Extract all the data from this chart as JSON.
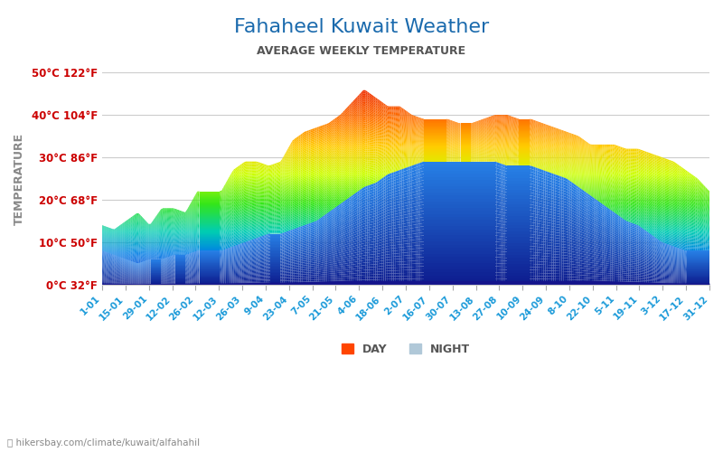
{
  "title": "Fahaheel Kuwait Weather",
  "subtitle": "AVERAGE WEEKLY TEMPERATURE",
  "ylabel": "TEMPERATURE",
  "xlabel_labels": [
    "1-01",
    "15-01",
    "29-01",
    "12-02",
    "26-02",
    "12-03",
    "26-03",
    "9-04",
    "23-04",
    "7-05",
    "21-05",
    "4-06",
    "18-06",
    "2-07",
    "16-07",
    "30-07",
    "13-08",
    "27-08",
    "10-09",
    "24-09",
    "8-10",
    "22-10",
    "5-11",
    "19-11",
    "3-12",
    "17-12",
    "31-12"
  ],
  "yticks": [
    0,
    10,
    20,
    30,
    40,
    50
  ],
  "ytick_labels": [
    "0°C 32°F",
    "10°C 50°F",
    "20°C 68°F",
    "30°C 86°F",
    "40°C 104°F",
    "50°C 122°F"
  ],
  "ymin": 0,
  "ymax": 50,
  "title_color": "#1a6aad",
  "subtitle_color": "#555555",
  "ytick_color": "#cc0000",
  "xtick_color": "#1a9ad9",
  "ylabel_color": "#888888",
  "footer_text": "hikersbay.com/climate/kuwait/alfahahil",
  "legend_day_color": "#ff4500",
  "legend_night_color": "#b0c8d8",
  "day_temps": [
    14,
    13,
    15,
    17,
    14,
    18,
    18,
    17,
    22,
    22,
    22,
    27,
    29,
    29,
    28,
    29,
    34,
    36,
    37,
    38,
    40,
    43,
    46,
    44,
    42,
    42,
    40,
    39,
    39,
    39,
    38,
    38,
    39,
    40,
    40,
    39,
    39,
    38,
    37,
    36,
    35,
    33,
    33,
    33,
    32,
    32,
    31,
    30,
    29,
    27,
    25,
    22
  ],
  "night_temps": [
    8,
    7,
    6,
    5,
    6,
    6,
    7,
    7,
    8,
    8,
    8,
    9,
    10,
    11,
    12,
    12,
    13,
    14,
    15,
    17,
    19,
    21,
    23,
    24,
    26,
    27,
    28,
    29,
    29,
    29,
    29,
    29,
    29,
    29,
    28,
    28,
    28,
    27,
    26,
    25,
    23,
    21,
    19,
    17,
    15,
    14,
    12,
    10,
    9,
    8,
    8,
    8
  ]
}
